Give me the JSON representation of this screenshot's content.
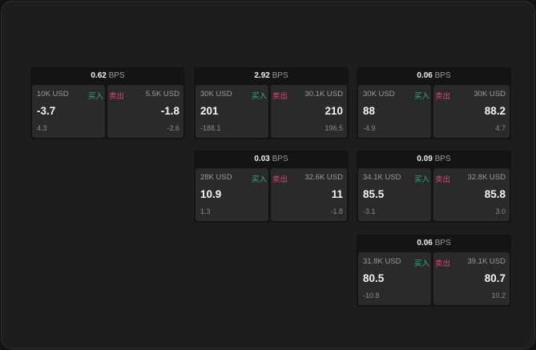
{
  "unit": "BPS",
  "buy_label": "买入",
  "sell_label": "卖出",
  "colors": {
    "buy": "#2bb673",
    "sell": "#e0457b"
  },
  "panels": [
    {
      "spread": "0.62",
      "bid_size": "10K USD",
      "bid": "-3.7",
      "bid_change": "4.3",
      "ask_size": "5.5K USD",
      "ask": "-1.8",
      "ask_change": "-2.6"
    },
    {
      "spread": "2.92",
      "bid_size": "30K USD",
      "bid": "201",
      "bid_change": "-188.1",
      "ask_size": "30.1K USD",
      "ask": "210",
      "ask_change": "196.5"
    },
    {
      "spread": "0.06",
      "bid_size": "30K USD",
      "bid": "88",
      "bid_change": "-4.9",
      "ask_size": "30K USD",
      "ask": "88.2",
      "ask_change": "4.7"
    },
    {
      "spread": "0.03",
      "bid_size": "28K USD",
      "bid": "10.9",
      "bid_change": "1.3",
      "ask_size": "32.6K USD",
      "ask": "11",
      "ask_change": "-1.8"
    },
    {
      "spread": "0.09",
      "bid_size": "34.1K USD",
      "bid": "85.5",
      "bid_change": "-3.1",
      "ask_size": "32.8K USD",
      "ask": "85.8",
      "ask_change": "3.0"
    },
    {
      "spread": "0.06",
      "bid_size": "31.8K USD",
      "bid": "80.5",
      "bid_change": "-10.8",
      "ask_size": "39.1K USD",
      "ask": "80.7",
      "ask_change": "10.2"
    }
  ]
}
